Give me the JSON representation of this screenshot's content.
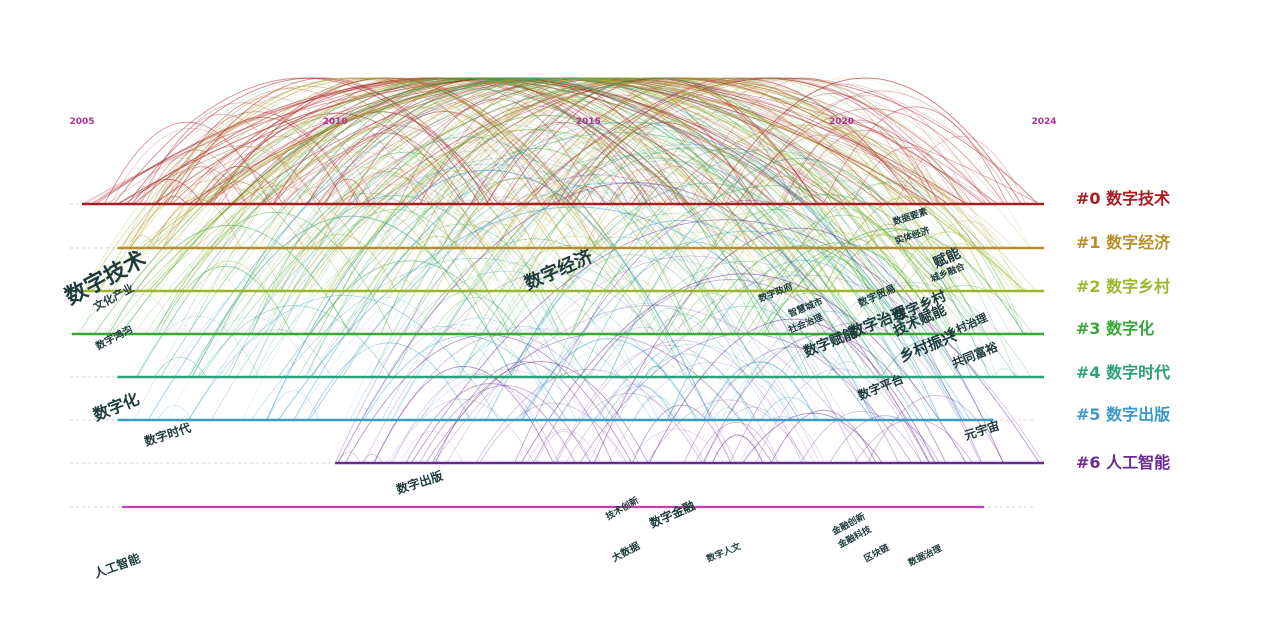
{
  "years": [
    {
      "year": 2005,
      "label": "2005"
    },
    {
      "year": 2010,
      "label": "2010"
    },
    {
      "year": 2015,
      "label": "2015"
    },
    {
      "year": 2020,
      "label": "2020"
    },
    {
      "year": 2024,
      "label": "2024"
    }
  ],
  "clusters": [
    {
      "id": "#0",
      "name": "数字技术",
      "color": "#a81c22",
      "start": 2005.0,
      "end": 2024.0
    },
    {
      "id": "#1",
      "name": "数字经济",
      "color": "#b5902a",
      "start": 2005.7,
      "end": 2024.0
    },
    {
      "id": "#2",
      "name": "数字乡村",
      "color": "#9ab82a",
      "start": 2005.0,
      "end": 2024.0
    },
    {
      "id": "#3",
      "name": "数字化",
      "color": "#3aa63a",
      "start": 2004.8,
      "end": 2024.0
    },
    {
      "id": "#4",
      "name": "数字时代",
      "color": "#2ea07a",
      "start": 2005.7,
      "end": 2024.0
    },
    {
      "id": "#5",
      "name": "数字出版",
      "color": "#3a9ac8",
      "start": 2005.7,
      "end": 2023.0
    },
    {
      "id": "#6",
      "name": "人工智能",
      "color": "#6a2a90",
      "start": 2010.0,
      "end": 2024.0
    }
  ],
  "keywords": [
    {
      "text": "数字技术",
      "size": 22
    },
    {
      "text": "文化产业",
      "size": 11
    },
    {
      "text": "数字鸿沟",
      "size": 10
    },
    {
      "text": "数字经济",
      "size": 18
    },
    {
      "text": "数字化",
      "size": 16
    },
    {
      "text": "数字时代",
      "size": 12
    },
    {
      "text": "数字出版",
      "size": 12
    },
    {
      "text": "人工智能",
      "size": 12
    },
    {
      "text": "数据要素",
      "size": 9
    },
    {
      "text": "实体经济",
      "size": 9
    },
    {
      "text": "赋能",
      "size": 14
    },
    {
      "text": "城乡融合",
      "size": 9
    },
    {
      "text": "数字政府",
      "size": 9
    },
    {
      "text": "智慧城市",
      "size": 9
    },
    {
      "text": "数字贸易",
      "size": 10
    },
    {
      "text": "社会治理",
      "size": 9
    },
    {
      "text": "数字治理",
      "size": 15
    },
    {
      "text": "数字乡村",
      "size": 14
    },
    {
      "text": "数字赋能",
      "size": 14
    },
    {
      "text": "技术赋能",
      "size": 14
    },
    {
      "text": "乡村治理",
      "size": 11
    },
    {
      "text": "乡村振兴",
      "size": 15
    },
    {
      "text": "共同富裕",
      "size": 12
    },
    {
      "text": "数字平台",
      "size": 12
    },
    {
      "text": "元宇宙",
      "size": 12
    },
    {
      "text": "技术创新",
      "size": 9
    },
    {
      "text": "数字金融",
      "size": 12
    },
    {
      "text": "大数据",
      "size": 10
    },
    {
      "text": "数字人文",
      "size": 9
    },
    {
      "text": "金融创新",
      "size": 9
    },
    {
      "text": "金融科技",
      "size": 9
    },
    {
      "text": "区块链",
      "size": 9
    },
    {
      "text": "数据治理",
      "size": 9
    }
  ]
}
